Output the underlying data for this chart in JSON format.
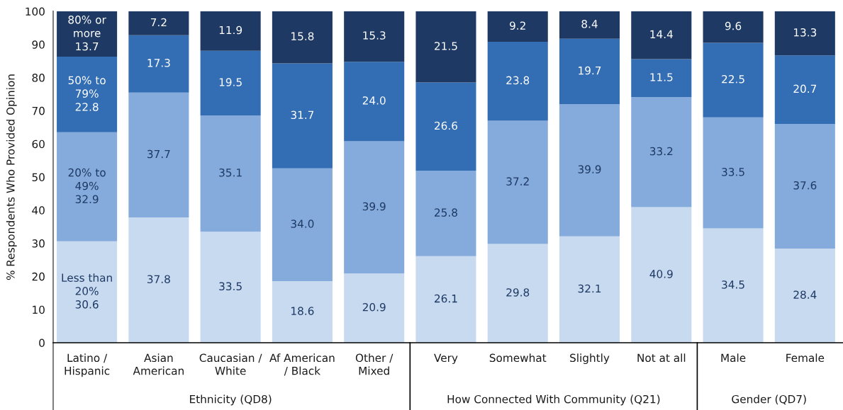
{
  "chart_data": {
    "type": "bar",
    "stacked": true,
    "ylabel": "% Respondents Who Provided Opinion",
    "categories": [
      "Latino /\nHispanic",
      "Asian\nAmerican",
      "Caucasian /\nWhite",
      "Af American\n/ Black",
      "Other /\nMixed",
      "Very",
      "Somewhat",
      "Slightly",
      "Not at all",
      "Male",
      "Female"
    ],
    "series": [
      {
        "name": "Less than\n20%",
        "color": "#c8daf0",
        "values": [
          30.6,
          37.8,
          33.5,
          18.6,
          20.9,
          26.1,
          29.8,
          32.1,
          40.9,
          34.5,
          28.4
        ],
        "value_labels": [
          "30.6",
          "37.8",
          "33.5",
          "18.6",
          "20.9",
          "26.1",
          "29.8",
          "32.1",
          "40.9",
          "34.5",
          "28.4"
        ]
      },
      {
        "name": "20% to\n49%",
        "color": "#84abdc",
        "values": [
          32.9,
          37.7,
          35.1,
          34.0,
          39.9,
          25.8,
          37.2,
          39.9,
          33.2,
          33.5,
          37.6
        ],
        "value_labels": [
          "32.9",
          "37.7",
          "35.1",
          "34.0",
          "39.9",
          "25.8",
          "37.2",
          "39.9",
          "33.2",
          "33.5",
          "37.6"
        ]
      },
      {
        "name": "50% to\n79%",
        "color": "#336db3",
        "values": [
          22.8,
          17.3,
          19.5,
          31.7,
          24.0,
          26.6,
          23.8,
          19.7,
          11.5,
          22.5,
          20.7
        ],
        "value_labels": [
          "22.8",
          "17.3",
          "19.5",
          "31.7",
          "24.0",
          "26.6",
          "23.8",
          "19.7",
          "11.5",
          "22.5",
          "20.7"
        ]
      },
      {
        "name": "80% or\nmore",
        "color": "#1e3a64",
        "values": [
          13.7,
          7.2,
          11.9,
          15.8,
          15.3,
          21.5,
          9.2,
          8.4,
          14.4,
          9.6,
          13.3
        ],
        "value_labels": [
          "13.7",
          "7.2",
          "11.9",
          "15.8",
          "15.3",
          "21.5",
          "9.2",
          "8.4",
          "14.4",
          "9.6",
          "13.3"
        ]
      }
    ],
    "ylim": [
      0,
      100
    ],
    "yticks": [
      0,
      10,
      20,
      30,
      40,
      50,
      60,
      70,
      80,
      90,
      100
    ],
    "annotations": [
      "Ethnicity (QD8)",
      "How Connected With Community (Q21)",
      "Gender (QD7)"
    ]
  }
}
